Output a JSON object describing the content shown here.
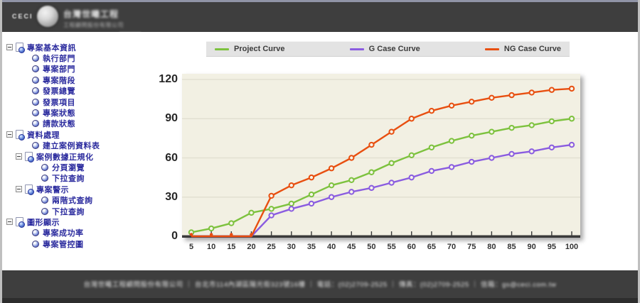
{
  "header": {
    "brand": "CECI",
    "title_line1": "台灣世曦工程",
    "title_line2": "工程顧問股份有限公司"
  },
  "sidebar": {
    "tree": [
      {
        "label": "專案基本資訊",
        "level": 0,
        "type": "branch"
      },
      {
        "label": "執行部門",
        "level": 1,
        "type": "leaf"
      },
      {
        "label": "專案部門",
        "level": 1,
        "type": "leaf"
      },
      {
        "label": "專案階段",
        "level": 1,
        "type": "leaf"
      },
      {
        "label": "發票總覽",
        "level": 1,
        "type": "leaf"
      },
      {
        "label": "發票項目",
        "level": 1,
        "type": "leaf"
      },
      {
        "label": "專案狀態",
        "level": 1,
        "type": "leaf"
      },
      {
        "label": "請款狀態",
        "level": 1,
        "type": "leaf"
      },
      {
        "label": "資料處理",
        "level": 0,
        "type": "branch"
      },
      {
        "label": "建立案例資料表",
        "level": 1,
        "type": "leaf"
      },
      {
        "label": "案例數據正規化",
        "level": 1,
        "type": "branch"
      },
      {
        "label": "分頁瀏覽",
        "level": 2,
        "type": "leaf"
      },
      {
        "label": "下拉查詢",
        "level": 2,
        "type": "leaf"
      },
      {
        "label": "專案警示",
        "level": 1,
        "type": "branch"
      },
      {
        "label": "兩階式查詢",
        "level": 2,
        "type": "leaf"
      },
      {
        "label": "下拉查詢",
        "level": 2,
        "type": "leaf"
      },
      {
        "label": "圖形顯示",
        "level": 0,
        "type": "branch"
      },
      {
        "label": "專案成功率",
        "level": 1,
        "type": "leaf"
      },
      {
        "label": "專案管控圖",
        "level": 1,
        "type": "leaf"
      }
    ]
  },
  "chart_data": {
    "type": "line",
    "x": [
      5,
      10,
      15,
      20,
      25,
      30,
      35,
      40,
      45,
      50,
      55,
      60,
      65,
      70,
      75,
      80,
      85,
      90,
      95,
      100
    ],
    "series": [
      {
        "name": "Project Curve",
        "color": "#7dc23e",
        "values": [
          3,
          6,
          10,
          18,
          21,
          25,
          32,
          39,
          43,
          49,
          56,
          62,
          68,
          73,
          77,
          80,
          83,
          85,
          88,
          90
        ]
      },
      {
        "name": "G Case Curve",
        "color": "#8a5ce0",
        "values": [
          0,
          0,
          0,
          0,
          16,
          21,
          25,
          30,
          34,
          37,
          41,
          45,
          50,
          53,
          57,
          60,
          63,
          65,
          68,
          70
        ]
      },
      {
        "name": "NG Case Curve",
        "color": "#e84f10",
        "values": [
          0,
          0,
          0,
          0,
          31,
          39,
          45,
          52,
          60,
          70,
          80,
          90,
          96,
          100,
          103,
          106,
          108,
          110,
          112,
          113
        ]
      }
    ],
    "ylim": [
      0,
      120
    ],
    "yticks": [
      0,
      30,
      60,
      90,
      120
    ],
    "xlabel": "",
    "ylabel": "",
    "grid": true,
    "legend_position": "top",
    "plot_background": "#f2f0e3",
    "axis_color": "#3a3a3a",
    "gridline_color": "#e2e0d2"
  },
  "footer": {
    "text": "台灣世曦工程顧問股份有限公司 ｜ 台北市114內湖區陽光街323號16樓 ｜ 電話：(02)2709-2525 ｜ 傳真：(02)2709-2525 ｜ 信箱：gs@ceci.com.tw"
  }
}
